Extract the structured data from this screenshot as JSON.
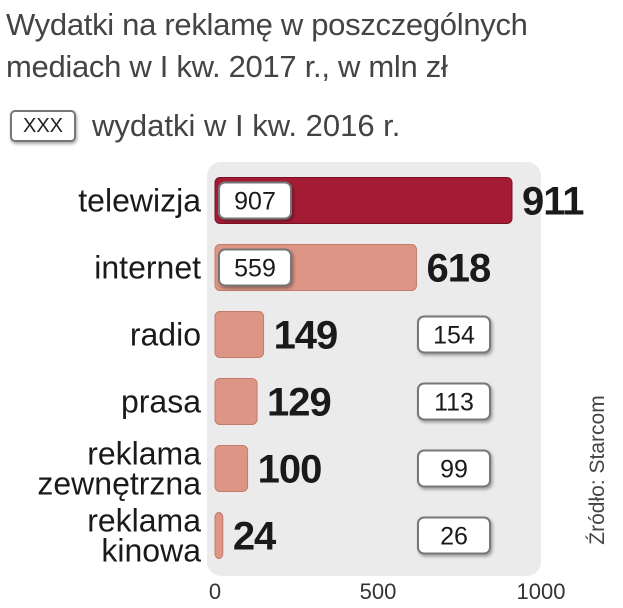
{
  "chart_data": {
    "type": "bar",
    "title": "Wydatki na reklamę w poszczególnych mediach w I kw. 2017 r., w mln zł",
    "legend_label": "wydatki w I kw. 2016 r.",
    "legend_box": "XXX",
    "categories": [
      [
        "telewizja"
      ],
      [
        "internet"
      ],
      [
        "radio"
      ],
      [
        "prasa"
      ],
      [
        "reklama",
        "zewnętrzna"
      ],
      [
        "reklama",
        "kinowa"
      ]
    ],
    "series": [
      {
        "name": "2017",
        "values": [
          911,
          618,
          149,
          129,
          100,
          24
        ]
      },
      {
        "name": "wydatki w I kw. 2016 r.",
        "values": [
          907,
          559,
          154,
          113,
          99,
          26
        ]
      }
    ],
    "x_ticks": [
      "0",
      "500",
      "1000"
    ],
    "xlim": [
      0,
      1000
    ],
    "highlight_color": "#a31c34",
    "bar_color": "#dd9585",
    "panel_color": "#ebebeb",
    "source": "Źródło: Starcom"
  }
}
